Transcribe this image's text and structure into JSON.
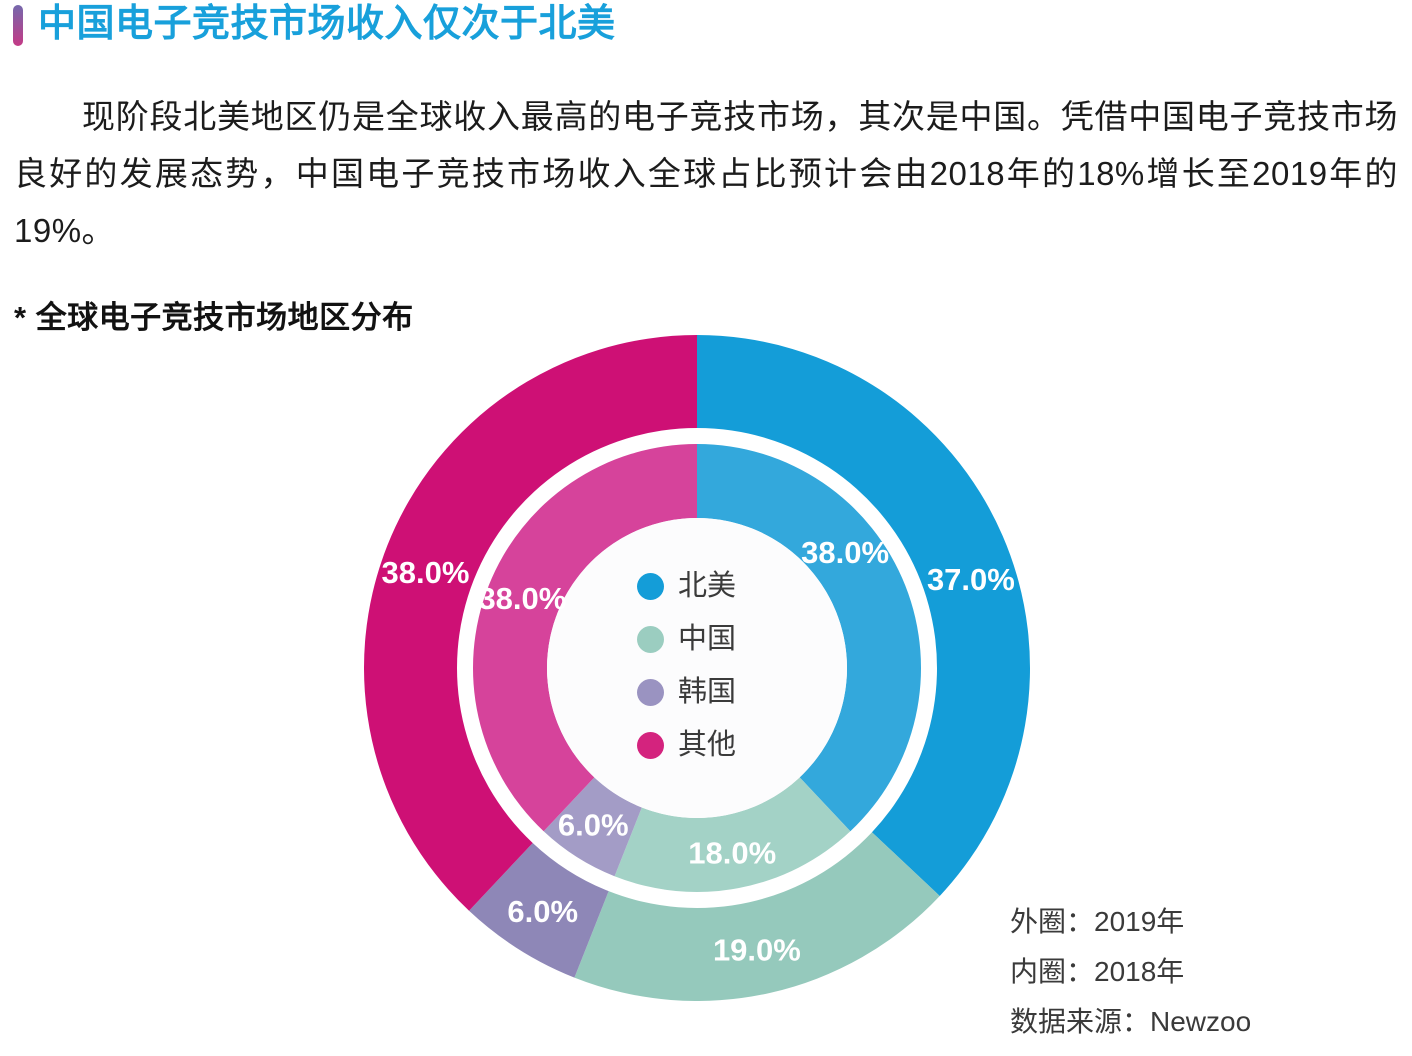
{
  "page": {
    "background": "#ffffff"
  },
  "header": {
    "title": "中国电子竞技市场收入仅次于北美",
    "title_color": "#18A0DB",
    "accent_bar": {
      "top": "#7568AC",
      "bottom": "#C43A86"
    }
  },
  "body_paragraph": "现阶段北美地区仍是全球收入最高的电子竞技市场，其次是中国。凭借中国电子竞技市场良好的发展态势，中国电子竞技市场收入全球占比预计会由2018年的18%增长至2019年的19%。",
  "chart": {
    "subtitle": "* 全球电子竞技市场地区分布",
    "notes": [
      "外圈：2019年",
      "内圈：2018年",
      "数据来源：Newzoo"
    ]
  },
  "chart_data": {
    "type": "pie",
    "variant": "double-ring-donut",
    "title": "全球电子竞技市场地区分布",
    "unit": "percent",
    "source": "Newzoo",
    "categories": [
      "北美",
      "中国",
      "韩国",
      "其他"
    ],
    "series": [
      {
        "name": "2019年",
        "ring": "outer",
        "values": [
          37.0,
          19.0,
          6.0,
          38.0
        ]
      },
      {
        "name": "2018年",
        "ring": "inner",
        "values": [
          38.0,
          18.0,
          6.0,
          38.0
        ]
      }
    ],
    "colors": {
      "outer": [
        "#149DD8",
        "#95C9BC",
        "#8E87B7",
        "#CE1075"
      ],
      "inner": [
        "#33A8DC",
        "#A3D2C6",
        "#A39CC6",
        "#D6439B"
      ]
    },
    "legend": {
      "position": "center",
      "items": [
        "北美",
        "中国",
        "韩国",
        "其他"
      ],
      "colors": [
        "#149DD8",
        "#9BCDC0",
        "#9A93C1",
        "#D4237E"
      ]
    },
    "label_color": "#ffffff",
    "label_format": "0.0%",
    "label_font_size": 31,
    "label_angles": {
      "outer": [
        72,
        168,
        212.4,
        289.5
      ],
      "inner": [
        52,
        169.2,
        213.5,
        291.8
      ]
    },
    "geometry": {
      "size": 666,
      "center": [
        333,
        333
      ],
      "rings": {
        "outer": {
          "r_outer": 333,
          "r_inner": 240,
          "label_r": 288
        },
        "inner": {
          "r_outer": 224,
          "r_inner": 150,
          "label_r": 188
        }
      },
      "center_hole_r": 150,
      "center_fill": "#FCFCFD",
      "start_angle_deg": 0,
      "clockwise": true
    }
  }
}
